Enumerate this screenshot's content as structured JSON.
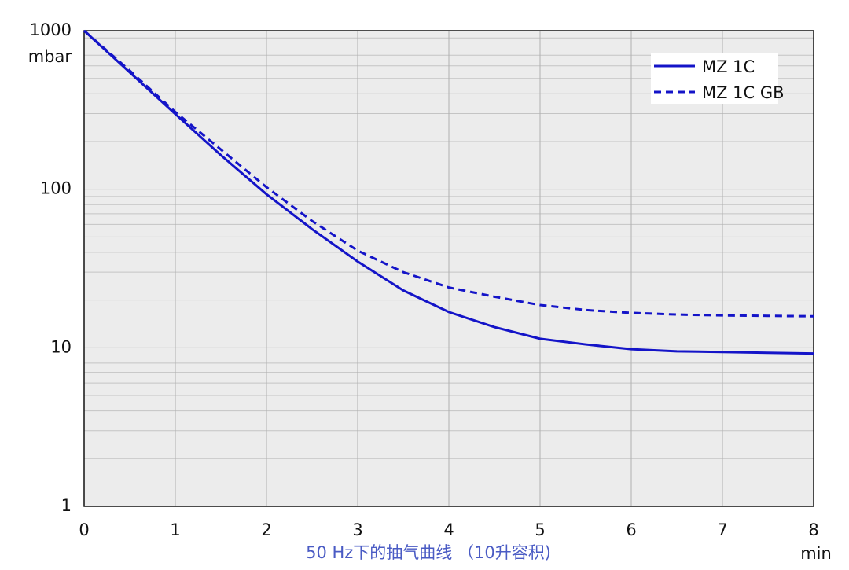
{
  "chart_data": {
    "type": "line",
    "subtitle": "50 Hz下的抽气曲线 （10升容积)",
    "y_label": "mbar",
    "x_label": "min",
    "x": [
      0,
      0.5,
      1,
      1.5,
      2,
      2.5,
      3,
      3.5,
      4,
      4.5,
      5,
      5.5,
      6,
      6.5,
      7,
      7.5,
      8
    ],
    "series": [
      {
        "name": "MZ 1C",
        "color": "#1414c8",
        "dash": false,
        "values": [
          1000,
          546,
          298,
          164,
          93,
          56,
          35,
          23,
          16.8,
          13.5,
          11.4,
          10.5,
          9.8,
          9.5,
          9.4,
          9.3,
          9.2
        ]
      },
      {
        "name": "MZ 1C GB",
        "color": "#1414c8",
        "dash": true,
        "values": [
          1000,
          560,
          307,
          178,
          103,
          63,
          41,
          30,
          24,
          21,
          18.6,
          17.3,
          16.6,
          16.2,
          16,
          15.9,
          15.8
        ]
      }
    ],
    "xlim": [
      0,
      8
    ],
    "xticks": [
      0,
      1,
      2,
      3,
      4,
      5,
      6,
      7,
      8
    ],
    "ylim": [
      1,
      1000
    ],
    "yticks": [
      1,
      10,
      100,
      1000
    ],
    "log_y": true,
    "grid": true,
    "minor_grid": true,
    "legend": "upper right"
  }
}
